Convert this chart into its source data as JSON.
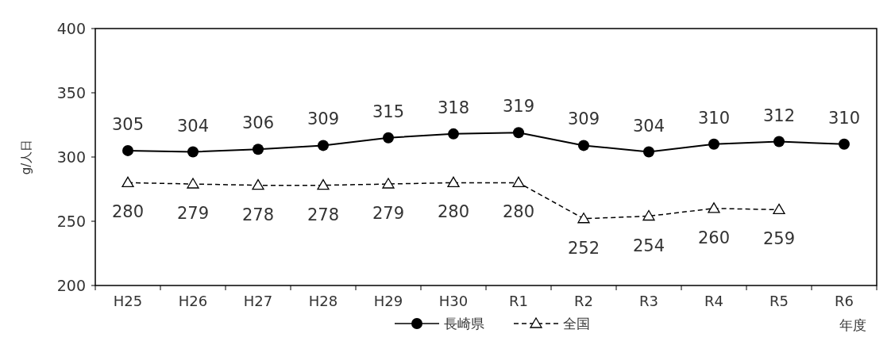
{
  "chart_data": {
    "type": "line",
    "ylabel": "g/人日",
    "xlabel": "年度",
    "categories": [
      "H25",
      "H26",
      "H27",
      "H28",
      "H29",
      "H30",
      "R1",
      "R2",
      "R3",
      "R4",
      "R5",
      "R6"
    ],
    "series": [
      {
        "name": "長崎県",
        "color": "#000000",
        "marker": "circle",
        "line_style": "solid",
        "values": [
          305,
          304,
          306,
          309,
          315,
          318,
          319,
          309,
          304,
          310,
          312,
          310
        ]
      },
      {
        "name": "全国",
        "color": "#000000",
        "marker": "triangle",
        "line_style": "dashed",
        "values": [
          280,
          279,
          278,
          278,
          279,
          280,
          280,
          252,
          254,
          260,
          259,
          null
        ]
      }
    ],
    "ylim": [
      200,
      400
    ],
    "yticks": [
      200,
      250,
      300,
      350,
      400
    ],
    "grid": false,
    "legend": "bottom",
    "data_labels": true
  }
}
